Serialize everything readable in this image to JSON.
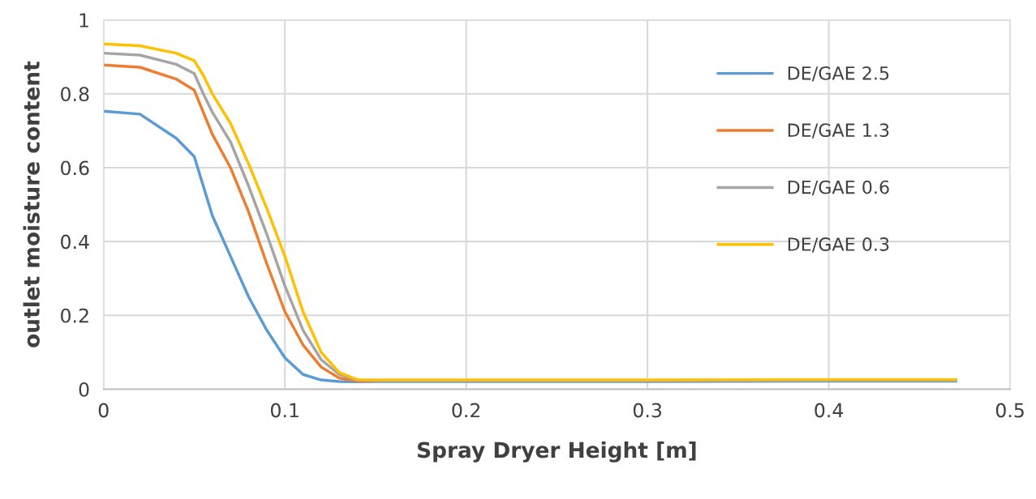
{
  "chart_data": {
    "type": "line",
    "xlabel": "Spray Dryer Height [m]",
    "ylabel": "outlet moisture content",
    "xlim": [
      0,
      0.5
    ],
    "xticks": [
      0,
      0.1,
      0.2,
      0.3,
      0.4,
      0.5
    ],
    "ylim": [
      0,
      1
    ],
    "yticks": [
      0,
      0.2,
      0.4,
      0.6,
      0.8,
      1
    ],
    "grid": true,
    "legend": "right",
    "marker": "none",
    "line_style": "solid",
    "x": [
      0,
      0.02,
      0.04,
      0.05,
      0.055,
      0.06,
      0.07,
      0.08,
      0.09,
      0.1,
      0.11,
      0.12,
      0.13,
      0.14,
      0.15,
      0.2,
      0.3,
      0.4,
      0.47
    ],
    "series": [
      {
        "name": "DE/GAE 2.5",
        "color": "#5b9bd5",
        "values": [
          0.753,
          0.745,
          0.68,
          0.63,
          0.55,
          0.47,
          0.36,
          0.25,
          0.16,
          0.085,
          0.04,
          0.025,
          0.021,
          0.02,
          0.021,
          0.021,
          0.021,
          0.022,
          0.022
        ]
      },
      {
        "name": "DE/GAE 1.3",
        "color": "#ed7d31",
        "values": [
          0.878,
          0.872,
          0.84,
          0.81,
          0.75,
          0.69,
          0.6,
          0.48,
          0.34,
          0.21,
          0.12,
          0.06,
          0.03,
          0.022,
          0.022,
          null,
          null,
          null,
          null
        ]
      },
      {
        "name": "DE/GAE 0.6",
        "color": "#a5a5a5",
        "values": [
          0.91,
          0.905,
          0.88,
          0.855,
          0.8,
          0.75,
          0.67,
          0.55,
          0.42,
          0.28,
          0.16,
          0.08,
          0.04,
          0.024,
          0.023,
          0.023,
          0.023,
          0.024,
          0.024
        ]
      },
      {
        "name": "DE/GAE 0.3",
        "color": "#ffc000",
        "values": [
          0.935,
          0.93,
          0.91,
          0.89,
          0.85,
          0.8,
          0.72,
          0.61,
          0.49,
          0.36,
          0.21,
          0.1,
          0.045,
          0.026,
          0.025,
          0.025,
          0.025,
          0.026,
          0.026
        ]
      }
    ]
  }
}
